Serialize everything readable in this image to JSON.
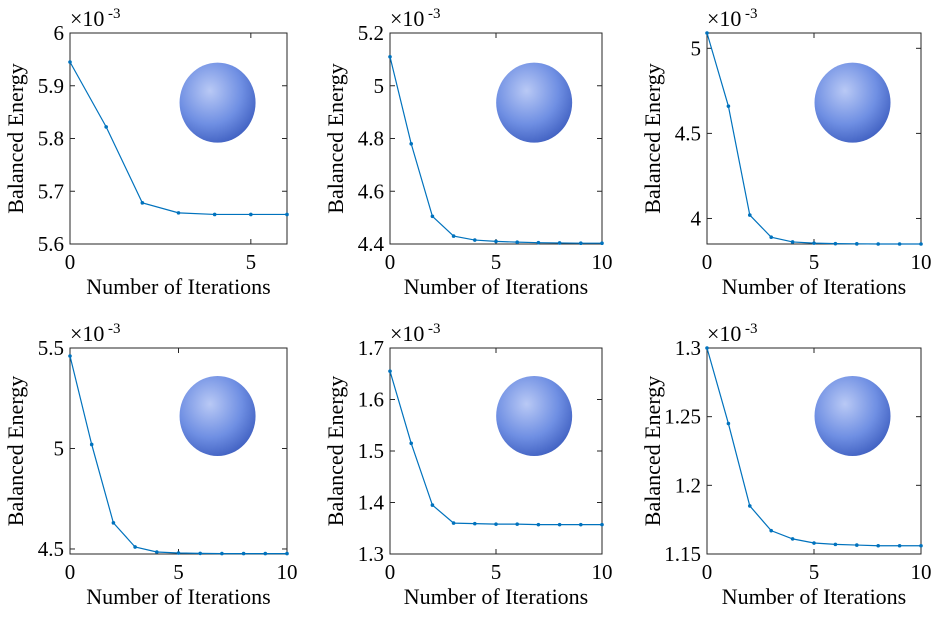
{
  "chart_data": [
    {
      "type": "line",
      "color": "#0072bd",
      "multiplier": "×10",
      "multiplier_exp": "-3",
      "xlabel": "Number of Iterations",
      "ylabel": "Balanced Energy",
      "x": [
        0,
        1,
        2,
        3,
        4,
        5,
        6
      ],
      "values": [
        5.945,
        5.822,
        5.678,
        5.659,
        5.656,
        5.656,
        5.656
      ],
      "xlim": [
        0,
        6
      ],
      "xticks": [
        0,
        5
      ],
      "ylim": [
        5.6,
        6
      ],
      "yticks": [
        5.6,
        5.7,
        5.8,
        5.9,
        6
      ]
    },
    {
      "type": "line",
      "color": "#0072bd",
      "multiplier": "×10",
      "multiplier_exp": "-3",
      "xlabel": "Number of Iterations",
      "ylabel": "Balanced Energy",
      "x": [
        0,
        1,
        2,
        3,
        4,
        5,
        6,
        7,
        8,
        9,
        10
      ],
      "values": [
        5.11,
        4.78,
        4.505,
        4.43,
        4.415,
        4.41,
        4.407,
        4.405,
        4.404,
        4.403,
        4.403
      ],
      "xlim": [
        0,
        10
      ],
      "xticks": [
        0,
        5,
        10
      ],
      "ylim": [
        4.4,
        5.2
      ],
      "yticks": [
        4.4,
        4.6,
        4.8,
        5,
        5.2
      ]
    },
    {
      "type": "line",
      "color": "#0072bd",
      "multiplier": "×10",
      "multiplier_exp": "-3",
      "xlabel": "Number of Iterations",
      "ylabel": "Balanced Energy",
      "x": [
        0,
        1,
        2,
        3,
        4,
        5,
        6,
        7,
        8,
        9,
        10
      ],
      "values": [
        5.09,
        4.66,
        4.02,
        3.89,
        3.862,
        3.855,
        3.852,
        3.851,
        3.85,
        3.85,
        3.85
      ],
      "xlim": [
        0,
        10
      ],
      "xticks": [
        0,
        5,
        10
      ],
      "ylim": [
        3.85,
        5.09
      ],
      "yticks": [
        4,
        4.5,
        5
      ]
    },
    {
      "type": "line",
      "color": "#0072bd",
      "multiplier": "×10",
      "multiplier_exp": "-3",
      "xlabel": "Number of Iterations",
      "ylabel": "Balanced Energy",
      "x": [
        0,
        1,
        2,
        3,
        4,
        5,
        6,
        7,
        8,
        9,
        10
      ],
      "values": [
        5.46,
        5.02,
        4.63,
        4.51,
        4.485,
        4.48,
        4.478,
        4.477,
        4.477,
        4.477,
        4.477
      ],
      "xlim": [
        0,
        10
      ],
      "xticks": [
        0,
        5,
        10
      ],
      "ylim": [
        4.475,
        5.5
      ],
      "yticks": [
        4.5,
        5,
        5.5
      ]
    },
    {
      "type": "line",
      "color": "#0072bd",
      "multiplier": "×10",
      "multiplier_exp": "-3",
      "xlabel": "Number of Iterations",
      "ylabel": "Balanced Energy",
      "x": [
        0,
        1,
        2,
        3,
        4,
        5,
        6,
        7,
        8,
        9,
        10
      ],
      "values": [
        1.655,
        1.515,
        1.395,
        1.36,
        1.359,
        1.358,
        1.358,
        1.357,
        1.357,
        1.357,
        1.357
      ],
      "xlim": [
        0,
        10
      ],
      "xticks": [
        0,
        5,
        10
      ],
      "ylim": [
        1.3,
        1.7
      ],
      "yticks": [
        1.3,
        1.4,
        1.5,
        1.6,
        1.7
      ]
    },
    {
      "type": "line",
      "color": "#0072bd",
      "multiplier": "×10",
      "multiplier_exp": "-3",
      "xlabel": "Number of Iterations",
      "ylabel": "Balanced Energy",
      "x": [
        0,
        1,
        2,
        3,
        4,
        5,
        6,
        7,
        8,
        9,
        10
      ],
      "values": [
        1.3,
        1.245,
        1.185,
        1.167,
        1.161,
        1.158,
        1.157,
        1.1565,
        1.156,
        1.156,
        1.156
      ],
      "xlim": [
        0,
        10
      ],
      "xticks": [
        0,
        5,
        10
      ],
      "ylim": [
        1.15,
        1.3
      ],
      "yticks": [
        1.15,
        1.2,
        1.25,
        1.3
      ]
    }
  ]
}
